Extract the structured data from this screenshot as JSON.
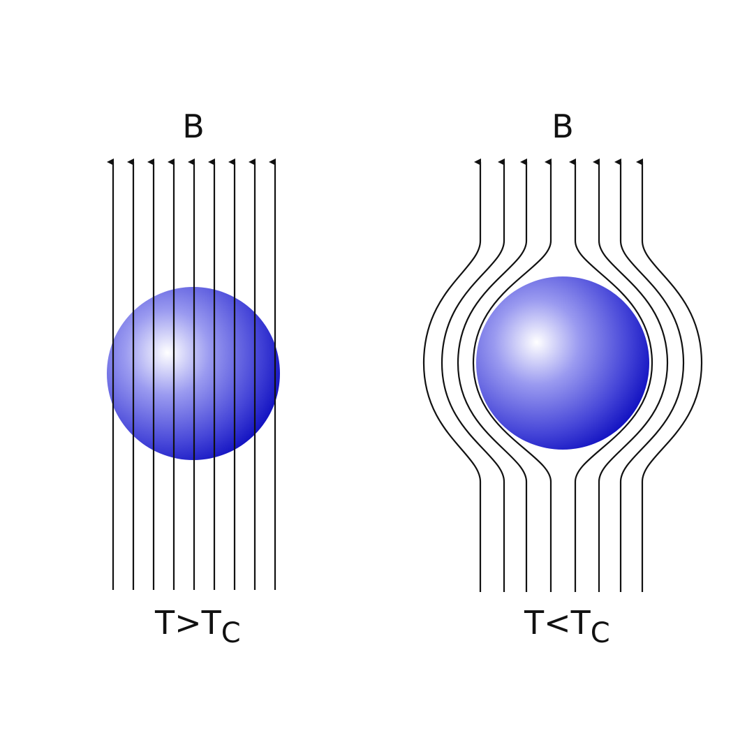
{
  "left_panel": {
    "field_label": "B",
    "condition_main": "T>T",
    "condition_sub": "C"
  },
  "right_panel": {
    "field_label": "B",
    "condition_main": "T<T",
    "condition_sub": "C"
  },
  "colors": {
    "line": "#111111",
    "sphere_highlight": "#ffffff",
    "sphere_mid": "#6f6fe6",
    "sphere_dark": "#1111c8",
    "background": "#ffffff"
  }
}
